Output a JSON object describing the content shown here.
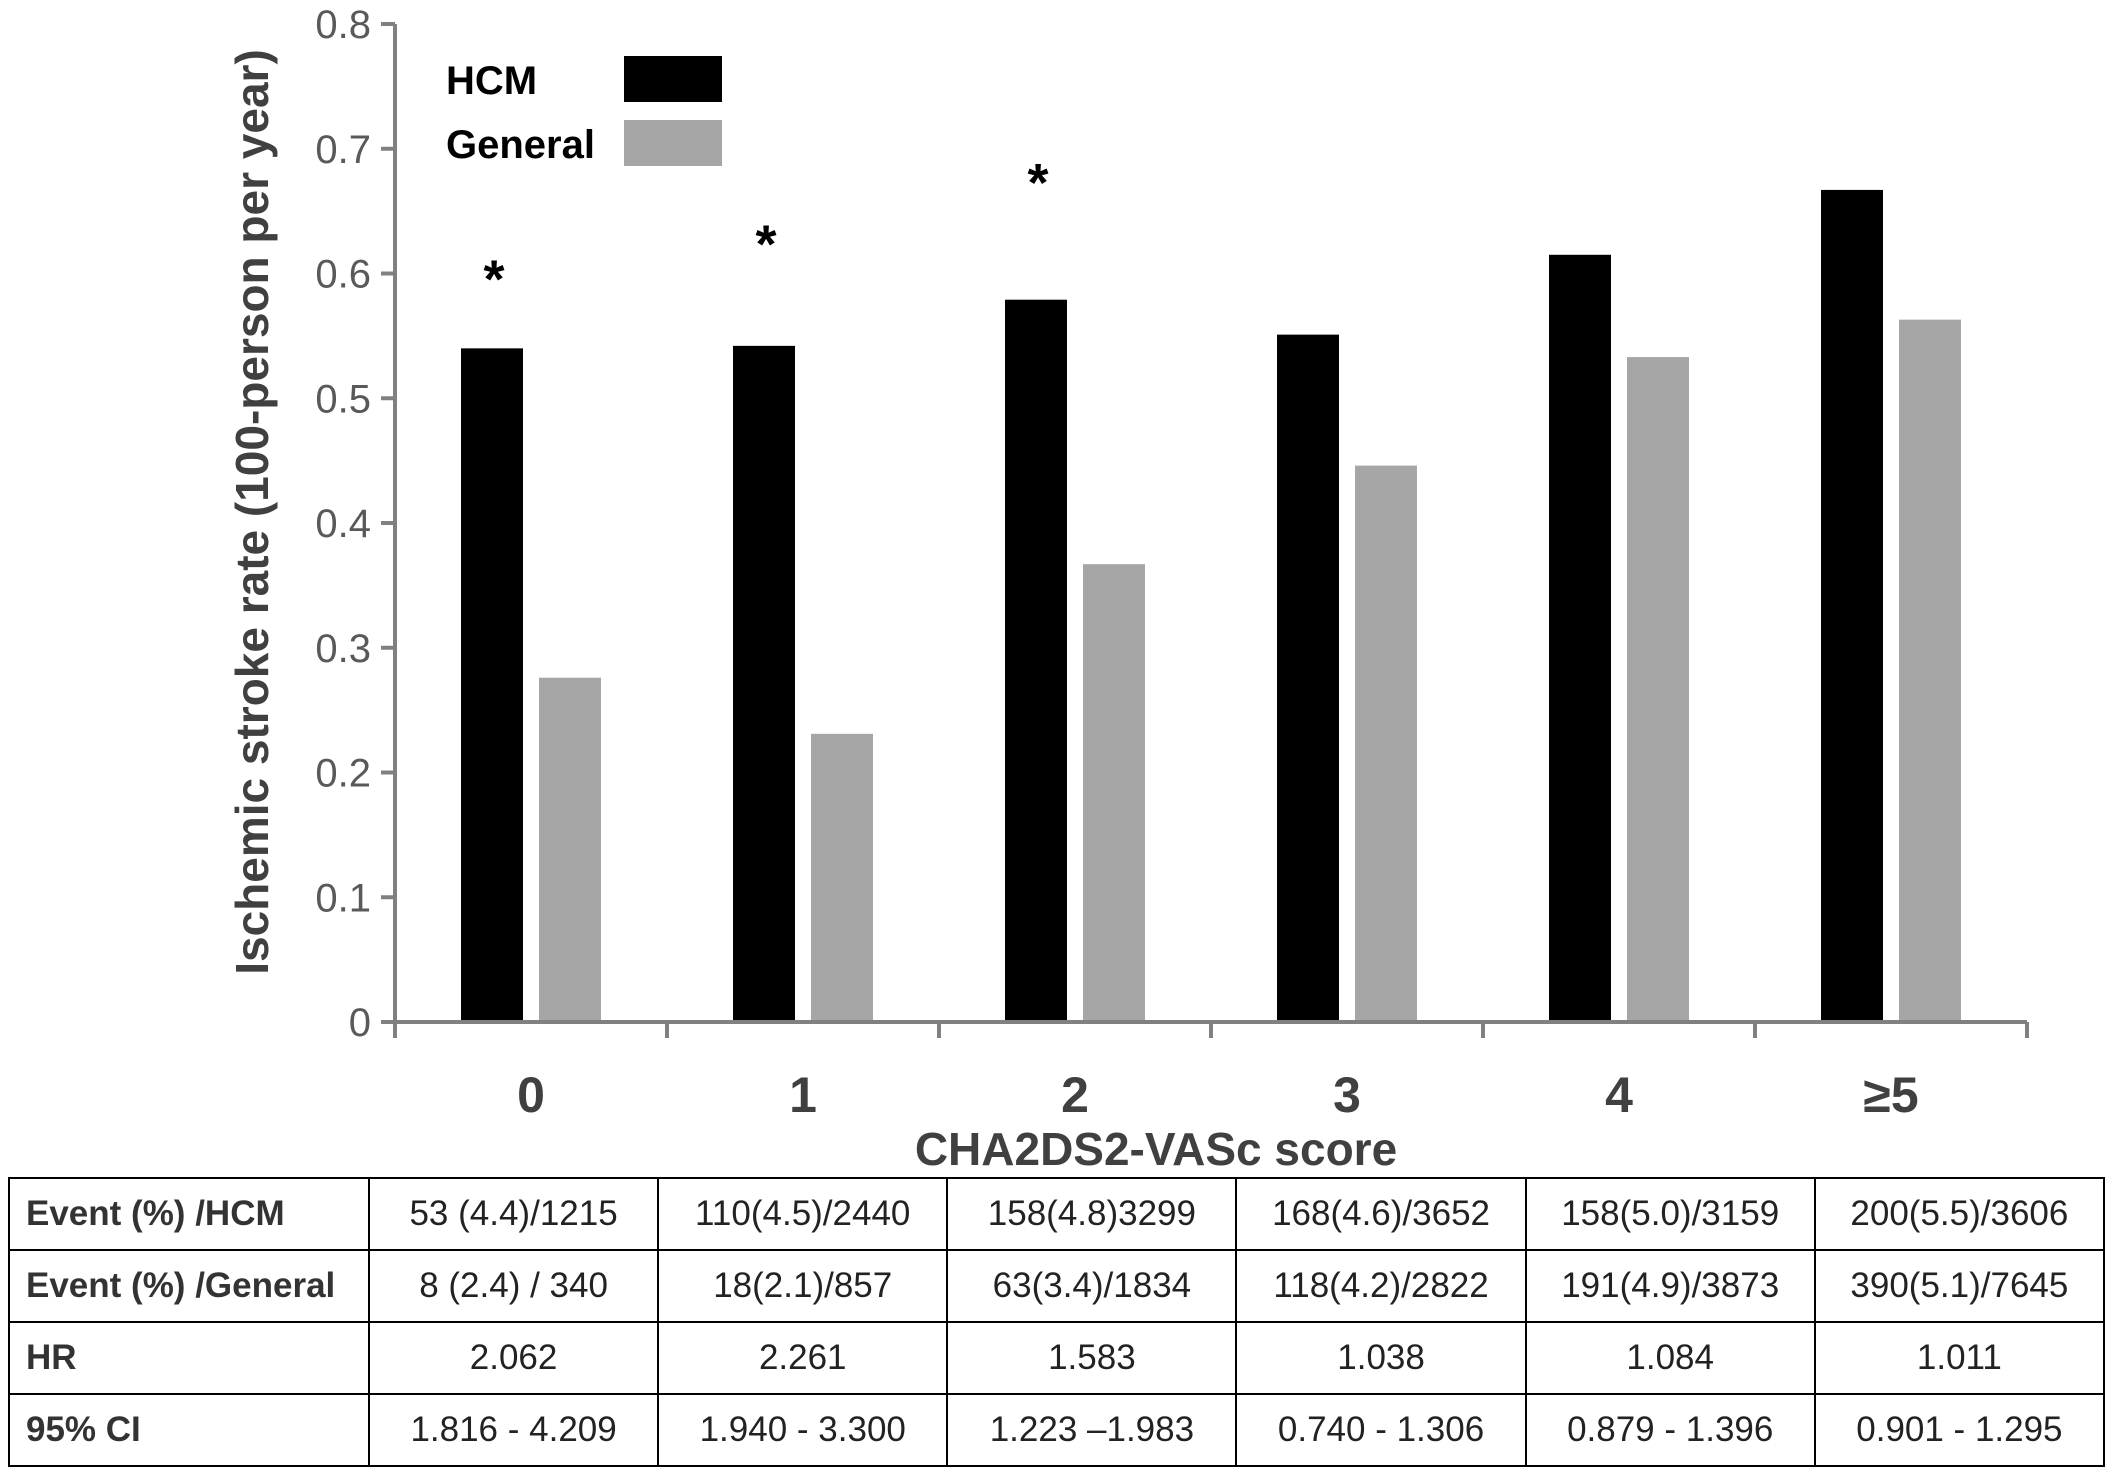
{
  "chart_data": {
    "type": "bar",
    "xlabel": "CHA2DS2-VASc score",
    "ylabel": "Ischemic stroke rate (100-person per year)",
    "ylim": [
      0,
      0.8
    ],
    "yticks": [
      "0",
      "0.1",
      "0.2",
      "0.3",
      "0.4",
      "0.5",
      "0.6",
      "0.7",
      "0.8"
    ],
    "categories": [
      "0",
      "1",
      "2",
      "3",
      "4",
      "≥5"
    ],
    "series": [
      {
        "name": "HCM",
        "color": "#000000",
        "values": [
          0.54,
          0.542,
          0.579,
          0.551,
          0.615,
          0.667
        ]
      },
      {
        "name": "General",
        "color": "#a6a6a6",
        "values": [
          0.276,
          0.231,
          0.367,
          0.446,
          0.533,
          0.563
        ]
      }
    ],
    "significance_marks": [
      {
        "category_index": 0,
        "text": "*",
        "value": 0.605
      },
      {
        "category_index": 1,
        "text": "*",
        "value": 0.633
      },
      {
        "category_index": 2,
        "text": "*",
        "value": 0.682
      }
    ],
    "legend_position": "top-left",
    "grid": false
  },
  "table": {
    "rows": [
      {
        "label": "Event (%) /HCM",
        "cells": [
          "53 (4.4)/1215",
          "110(4.5)/2440",
          "158(4.8)3299",
          "168(4.6)/3652",
          "158(5.0)/3159",
          "200(5.5)/3606"
        ]
      },
      {
        "label": "Event (%) /General",
        "cells": [
          "8 (2.4) / 340",
          "18(2.1)/857",
          "63(3.4)/1834",
          "118(4.2)/2822",
          "191(4.9)/3873",
          "390(5.1)/7645"
        ]
      },
      {
        "label": "HR",
        "cells": [
          "2.062",
          "2.261",
          "1.583",
          "1.038",
          "1.084",
          "1.011"
        ]
      },
      {
        "label": "95% CI",
        "cells": [
          "1.816 - 4.209",
          "1.940 - 3.300",
          "1.223 –1.983",
          "0.740 - 1.306",
          "0.879 - 1.396",
          "0.901 - 1.295"
        ]
      }
    ]
  }
}
